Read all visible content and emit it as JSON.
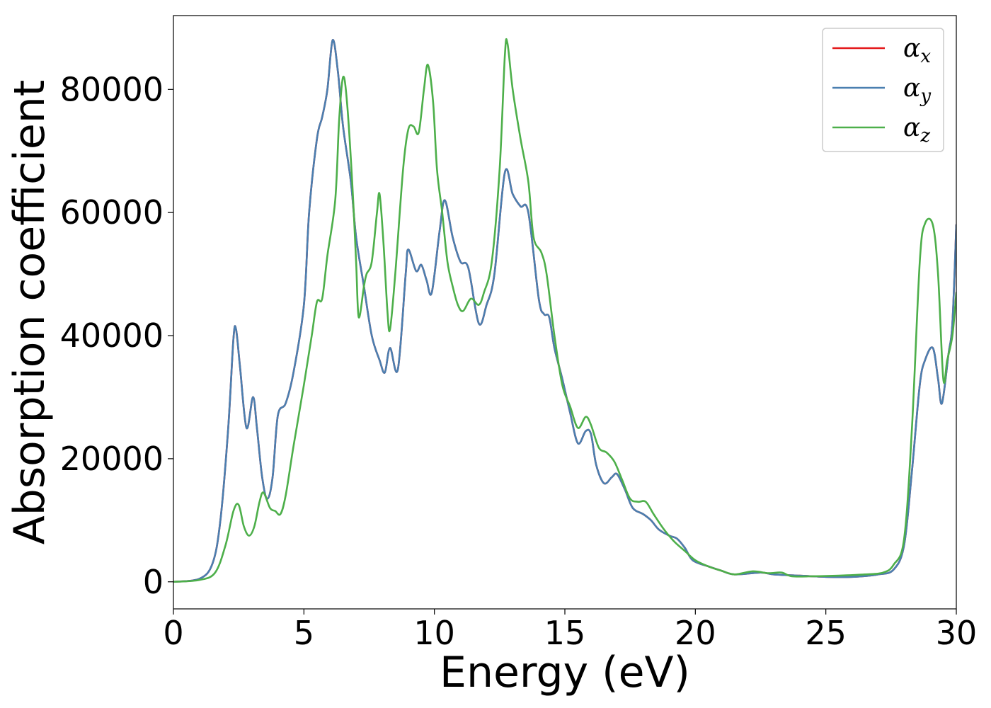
{
  "chart_data": {
    "type": "line",
    "title": "",
    "xlabel": "Energy (eV)",
    "ylabel": "Absorption coefficient",
    "xlim": [
      0,
      30
    ],
    "ylim": [
      -4400,
      92000
    ],
    "xticks": [
      0,
      5,
      10,
      15,
      20,
      25,
      30
    ],
    "yticks": [
      0,
      20000,
      40000,
      60000,
      80000
    ],
    "grid": false,
    "legend_position": "top-right",
    "series": [
      {
        "name": "α",
        "subscript": "x",
        "color": "#e41a1c",
        "points": [
          [
            0,
            0
          ],
          [
            1,
            500
          ],
          [
            1.5,
            3000
          ],
          [
            1.8,
            10000
          ],
          [
            2.1,
            25000
          ],
          [
            2.3,
            39500
          ],
          [
            2.4,
            41000
          ],
          [
            2.55,
            35000
          ],
          [
            2.8,
            25000
          ],
          [
            3.05,
            30000
          ],
          [
            3.2,
            25000
          ],
          [
            3.4,
            17000
          ],
          [
            3.6,
            13500
          ],
          [
            3.8,
            17000
          ],
          [
            4.0,
            27000
          ],
          [
            4.3,
            29000
          ],
          [
            4.6,
            34000
          ],
          [
            5.0,
            45000
          ],
          [
            5.2,
            60000
          ],
          [
            5.5,
            72000
          ],
          [
            5.7,
            75500
          ],
          [
            5.9,
            80000
          ],
          [
            6.1,
            88000
          ],
          [
            6.3,
            83000
          ],
          [
            6.5,
            74000
          ],
          [
            6.8,
            65000
          ],
          [
            7.0,
            56000
          ],
          [
            7.3,
            48000
          ],
          [
            7.6,
            40000
          ],
          [
            7.9,
            36000
          ],
          [
            8.1,
            34000
          ],
          [
            8.3,
            38000
          ],
          [
            8.6,
            34500
          ],
          [
            8.9,
            50000
          ],
          [
            9.0,
            54000
          ],
          [
            9.3,
            50500
          ],
          [
            9.5,
            51500
          ],
          [
            9.7,
            49000
          ],
          [
            9.9,
            47000
          ],
          [
            10.2,
            57000
          ],
          [
            10.4,
            62000
          ],
          [
            10.7,
            56000
          ],
          [
            11.0,
            52000
          ],
          [
            11.3,
            51000
          ],
          [
            11.7,
            42000
          ],
          [
            12.0,
            45000
          ],
          [
            12.3,
            50000
          ],
          [
            12.7,
            66500
          ],
          [
            13.0,
            63000
          ],
          [
            13.3,
            61000
          ],
          [
            13.6,
            60000
          ],
          [
            14.0,
            46000
          ],
          [
            14.2,
            43500
          ],
          [
            14.4,
            43000
          ],
          [
            14.6,
            38000
          ],
          [
            14.9,
            33000
          ],
          [
            15.2,
            27500
          ],
          [
            15.5,
            22500
          ],
          [
            15.8,
            24500
          ],
          [
            16.0,
            24000
          ],
          [
            16.2,
            19000
          ],
          [
            16.5,
            16000
          ],
          [
            16.8,
            17000
          ],
          [
            17.0,
            17500
          ],
          [
            17.3,
            15000
          ],
          [
            17.6,
            12000
          ],
          [
            18.0,
            11000
          ],
          [
            18.3,
            10000
          ],
          [
            18.6,
            8500
          ],
          [
            19.0,
            7500
          ],
          [
            19.3,
            7000
          ],
          [
            19.6,
            5500
          ],
          [
            19.9,
            3500
          ],
          [
            20.5,
            2500
          ],
          [
            21.0,
            1800
          ],
          [
            21.5,
            1200
          ],
          [
            22.5,
            1500
          ],
          [
            23.0,
            1200
          ],
          [
            24.0,
            1000
          ],
          [
            25.0,
            800
          ],
          [
            26.0,
            800
          ],
          [
            27.0,
            1200
          ],
          [
            27.6,
            2000
          ],
          [
            28.0,
            6000
          ],
          [
            28.3,
            18000
          ],
          [
            28.6,
            32000
          ],
          [
            28.8,
            36000
          ],
          [
            29.1,
            38000
          ],
          [
            29.3,
            33000
          ],
          [
            29.45,
            29000
          ],
          [
            29.7,
            37000
          ],
          [
            29.85,
            42000
          ],
          [
            30.0,
            58000
          ]
        ]
      },
      {
        "name": "α",
        "subscript": "y",
        "color": "#4a7fb0",
        "points": [
          [
            0,
            0
          ],
          [
            1,
            500
          ],
          [
            1.5,
            3000
          ],
          [
            1.8,
            10000
          ],
          [
            2.1,
            25000
          ],
          [
            2.3,
            39500
          ],
          [
            2.4,
            41000
          ],
          [
            2.55,
            35000
          ],
          [
            2.8,
            25000
          ],
          [
            3.05,
            30000
          ],
          [
            3.2,
            25000
          ],
          [
            3.4,
            17000
          ],
          [
            3.6,
            13500
          ],
          [
            3.8,
            17000
          ],
          [
            4.0,
            27000
          ],
          [
            4.3,
            29000
          ],
          [
            4.6,
            34000
          ],
          [
            5.0,
            45000
          ],
          [
            5.2,
            60000
          ],
          [
            5.5,
            72000
          ],
          [
            5.7,
            75500
          ],
          [
            5.9,
            80000
          ],
          [
            6.1,
            88000
          ],
          [
            6.3,
            83000
          ],
          [
            6.5,
            74000
          ],
          [
            6.8,
            65000
          ],
          [
            7.0,
            56000
          ],
          [
            7.3,
            48000
          ],
          [
            7.6,
            40000
          ],
          [
            7.9,
            36000
          ],
          [
            8.1,
            34000
          ],
          [
            8.3,
            38000
          ],
          [
            8.6,
            34500
          ],
          [
            8.9,
            50000
          ],
          [
            9.0,
            54000
          ],
          [
            9.3,
            50500
          ],
          [
            9.5,
            51500
          ],
          [
            9.7,
            49000
          ],
          [
            9.9,
            47000
          ],
          [
            10.2,
            57000
          ],
          [
            10.4,
            62000
          ],
          [
            10.7,
            56000
          ],
          [
            11.0,
            52000
          ],
          [
            11.3,
            51000
          ],
          [
            11.7,
            42000
          ],
          [
            12.0,
            45000
          ],
          [
            12.3,
            50000
          ],
          [
            12.7,
            66500
          ],
          [
            13.0,
            63000
          ],
          [
            13.3,
            61000
          ],
          [
            13.6,
            60000
          ],
          [
            14.0,
            46000
          ],
          [
            14.2,
            43500
          ],
          [
            14.4,
            43000
          ],
          [
            14.6,
            38000
          ],
          [
            14.9,
            33000
          ],
          [
            15.2,
            27500
          ],
          [
            15.5,
            22500
          ],
          [
            15.8,
            24500
          ],
          [
            16.0,
            24000
          ],
          [
            16.2,
            19000
          ],
          [
            16.5,
            16000
          ],
          [
            16.8,
            17000
          ],
          [
            17.0,
            17500
          ],
          [
            17.3,
            15000
          ],
          [
            17.6,
            12000
          ],
          [
            18.0,
            11000
          ],
          [
            18.3,
            10000
          ],
          [
            18.6,
            8500
          ],
          [
            19.0,
            7500
          ],
          [
            19.3,
            7000
          ],
          [
            19.6,
            5500
          ],
          [
            19.9,
            3500
          ],
          [
            20.5,
            2500
          ],
          [
            21.0,
            1800
          ],
          [
            21.5,
            1200
          ],
          [
            22.5,
            1500
          ],
          [
            23.0,
            1200
          ],
          [
            24.0,
            1000
          ],
          [
            25.0,
            800
          ],
          [
            26.0,
            800
          ],
          [
            27.0,
            1200
          ],
          [
            27.6,
            2000
          ],
          [
            28.0,
            6000
          ],
          [
            28.3,
            18000
          ],
          [
            28.6,
            32000
          ],
          [
            28.8,
            36000
          ],
          [
            29.1,
            38000
          ],
          [
            29.3,
            33000
          ],
          [
            29.45,
            29000
          ],
          [
            29.7,
            37000
          ],
          [
            29.85,
            42000
          ],
          [
            30.0,
            58000
          ]
        ]
      },
      {
        "name": "α",
        "subscript": "z",
        "color": "#4daf4a",
        "points": [
          [
            0,
            0
          ],
          [
            1,
            300
          ],
          [
            1.6,
            1500
          ],
          [
            2.0,
            6000
          ],
          [
            2.3,
            11500
          ],
          [
            2.5,
            12500
          ],
          [
            2.7,
            9000
          ],
          [
            2.9,
            7500
          ],
          [
            3.1,
            9000
          ],
          [
            3.3,
            13000
          ],
          [
            3.45,
            14500
          ],
          [
            3.7,
            12000
          ],
          [
            3.9,
            11500
          ],
          [
            4.1,
            11000
          ],
          [
            4.3,
            14000
          ],
          [
            4.6,
            22000
          ],
          [
            5.0,
            32000
          ],
          [
            5.3,
            40000
          ],
          [
            5.5,
            45500
          ],
          [
            5.7,
            46000
          ],
          [
            5.9,
            53000
          ],
          [
            6.2,
            62000
          ],
          [
            6.35,
            75000
          ],
          [
            6.5,
            82000
          ],
          [
            6.65,
            78000
          ],
          [
            6.85,
            65000
          ],
          [
            7.0,
            52000
          ],
          [
            7.1,
            43000
          ],
          [
            7.3,
            48000
          ],
          [
            7.4,
            50000
          ],
          [
            7.6,
            52000
          ],
          [
            7.8,
            60000
          ],
          [
            7.9,
            63000
          ],
          [
            8.05,
            55000
          ],
          [
            8.2,
            44000
          ],
          [
            8.3,
            41000
          ],
          [
            8.5,
            50000
          ],
          [
            8.8,
            67000
          ],
          [
            9.0,
            73500
          ],
          [
            9.2,
            74000
          ],
          [
            9.4,
            73000
          ],
          [
            9.6,
            80000
          ],
          [
            9.75,
            84000
          ],
          [
            9.95,
            78000
          ],
          [
            10.1,
            67000
          ],
          [
            10.3,
            60000
          ],
          [
            10.5,
            52000
          ],
          [
            10.7,
            48000
          ],
          [
            10.9,
            45000
          ],
          [
            11.1,
            44000
          ],
          [
            11.4,
            46000
          ],
          [
            11.7,
            45000
          ],
          [
            11.9,
            47000
          ],
          [
            12.2,
            52000
          ],
          [
            12.5,
            67000
          ],
          [
            12.7,
            85500
          ],
          [
            12.8,
            87500
          ],
          [
            13.0,
            80000
          ],
          [
            13.3,
            72000
          ],
          [
            13.6,
            65000
          ],
          [
            13.8,
            56000
          ],
          [
            14.1,
            53500
          ],
          [
            14.3,
            50000
          ],
          [
            14.6,
            40000
          ],
          [
            14.9,
            32000
          ],
          [
            15.2,
            28500
          ],
          [
            15.5,
            25000
          ],
          [
            15.8,
            26800
          ],
          [
            16.0,
            25500
          ],
          [
            16.3,
            21800
          ],
          [
            16.6,
            21000
          ],
          [
            16.9,
            19500
          ],
          [
            17.2,
            16500
          ],
          [
            17.5,
            13500
          ],
          [
            17.8,
            13000
          ],
          [
            18.1,
            13000
          ],
          [
            18.4,
            11000
          ],
          [
            18.8,
            8500
          ],
          [
            19.2,
            6500
          ],
          [
            19.6,
            5000
          ],
          [
            20.0,
            3500
          ],
          [
            20.5,
            2500
          ],
          [
            21.0,
            1800
          ],
          [
            21.5,
            1200
          ],
          [
            22.2,
            1700
          ],
          [
            22.8,
            1400
          ],
          [
            23.3,
            1500
          ],
          [
            23.7,
            900
          ],
          [
            24.5,
            900
          ],
          [
            25.5,
            1000
          ],
          [
            26.5,
            1200
          ],
          [
            27.2,
            1500
          ],
          [
            27.6,
            2800
          ],
          [
            28.0,
            7000
          ],
          [
            28.3,
            25000
          ],
          [
            28.6,
            52000
          ],
          [
            28.8,
            58200
          ],
          [
            29.1,
            58000
          ],
          [
            29.3,
            50000
          ],
          [
            29.5,
            33000
          ],
          [
            29.65,
            36000
          ],
          [
            29.85,
            40000
          ],
          [
            30.0,
            47000
          ]
        ]
      }
    ]
  }
}
